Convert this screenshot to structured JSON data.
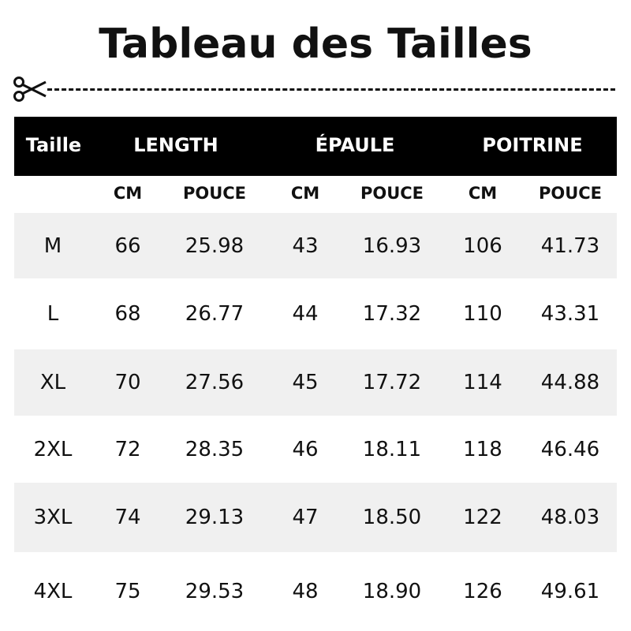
{
  "title": "Tableau des Tailles",
  "header": {
    "size": "Taille",
    "groups": [
      "LENGTH",
      "ÉPAULE",
      "POITRINE"
    ]
  },
  "units": [
    "CM",
    "POUCE",
    "CM",
    "POUCE",
    "CM",
    "POUCE"
  ],
  "rows": [
    [
      "M",
      "66",
      "25.98",
      "43",
      "16.93",
      "106",
      "41.73"
    ],
    [
      "L",
      "68",
      "26.77",
      "44",
      "17.32",
      "110",
      "43.31"
    ],
    [
      "XL",
      "70",
      "27.56",
      "45",
      "17.72",
      "114",
      "44.88"
    ],
    [
      "2XL",
      "72",
      "28.35",
      "46",
      "18.11",
      "118",
      "46.46"
    ],
    [
      "3XL",
      "74",
      "29.13",
      "47",
      "18.50",
      "122",
      "48.03"
    ],
    [
      "4XL",
      "75",
      "29.53",
      "48",
      "18.90",
      "126",
      "49.61"
    ]
  ],
  "colors": {
    "header_bg": "#000000",
    "stripe": "#f0f0f0"
  }
}
